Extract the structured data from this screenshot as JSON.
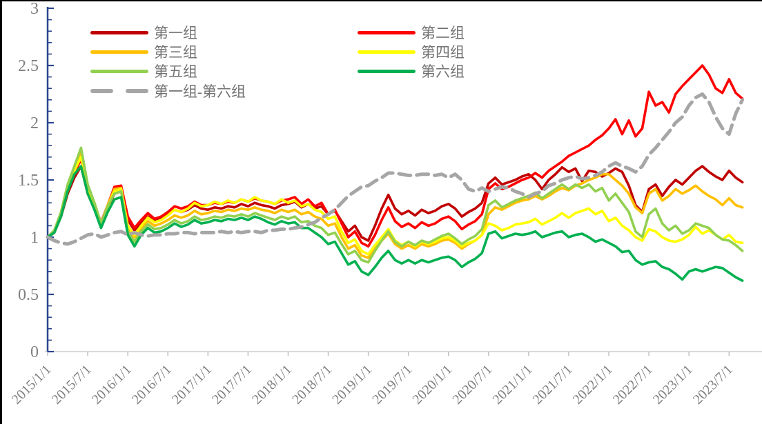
{
  "chart_data": {
    "type": "line",
    "title": "",
    "x_unit": "month",
    "x_range": "2015/1 - 2023/9",
    "x_tick_labels": [
      "2015/1/1",
      "2015/7/1",
      "2016/1/1",
      "2016/7/1",
      "2017/1/1",
      "2017/7/1",
      "2018/1/1",
      "2018/7/1",
      "2019/1/1",
      "2019/7/1",
      "2020/1/1",
      "2020/7/1",
      "2021/1/1",
      "2021/7/1",
      "2022/1/1",
      "2022/7/1",
      "2023/1/1",
      "2023/7/1"
    ],
    "y_tick_labels": [
      "0",
      "0.5",
      "1",
      "1.5",
      "2",
      "2.5",
      "3"
    ],
    "ylim": [
      0,
      3
    ],
    "y_minor_tick_interval": 0.1,
    "grid": "off",
    "legend_position": "top-left",
    "colors": {
      "y_axis": "#2B4590",
      "x_axis_line": "#D9D9D9",
      "x_tick": "#BFBFBF",
      "tick_label": "#7F7F7F",
      "legend_text": "#737373"
    },
    "series": [
      {
        "id": "group-1",
        "name": "第一组",
        "color": "#C00000",
        "style": "solid",
        "values": [
          1.0,
          1.04,
          1.18,
          1.38,
          1.52,
          1.62,
          1.38,
          1.25,
          1.12,
          1.25,
          1.38,
          1.4,
          1.15,
          1.06,
          1.12,
          1.18,
          1.14,
          1.16,
          1.2,
          1.24,
          1.22,
          1.24,
          1.28,
          1.25,
          1.24,
          1.26,
          1.25,
          1.27,
          1.26,
          1.29,
          1.27,
          1.3,
          1.28,
          1.27,
          1.25,
          1.28,
          1.29,
          1.31,
          1.26,
          1.29,
          1.25,
          1.27,
          1.2,
          1.23,
          1.14,
          1.05,
          1.1,
          1.0,
          0.97,
          1.1,
          1.25,
          1.37,
          1.25,
          1.2,
          1.23,
          1.19,
          1.24,
          1.21,
          1.23,
          1.27,
          1.29,
          1.25,
          1.18,
          1.22,
          1.25,
          1.3,
          1.47,
          1.52,
          1.46,
          1.48,
          1.5,
          1.53,
          1.55,
          1.5,
          1.42,
          1.5,
          1.55,
          1.61,
          1.57,
          1.6,
          1.49,
          1.58,
          1.57,
          1.53,
          1.56,
          1.6,
          1.57,
          1.45,
          1.28,
          1.22,
          1.42,
          1.46,
          1.36,
          1.44,
          1.5,
          1.46,
          1.52,
          1.58,
          1.62,
          1.57,
          1.53,
          1.5,
          1.58,
          1.52,
          1.48
        ]
      },
      {
        "id": "group-2",
        "name": "第二组",
        "color": "#FF0000",
        "style": "solid",
        "values": [
          1.0,
          1.05,
          1.2,
          1.42,
          1.56,
          1.68,
          1.42,
          1.28,
          1.13,
          1.28,
          1.44,
          1.45,
          1.18,
          1.08,
          1.15,
          1.21,
          1.16,
          1.18,
          1.22,
          1.27,
          1.25,
          1.27,
          1.31,
          1.28,
          1.28,
          1.3,
          1.29,
          1.31,
          1.3,
          1.33,
          1.31,
          1.34,
          1.32,
          1.31,
          1.29,
          1.32,
          1.33,
          1.35,
          1.29,
          1.33,
          1.27,
          1.3,
          1.2,
          1.24,
          1.12,
          1.0,
          1.05,
          0.95,
          0.92,
          1.02,
          1.15,
          1.26,
          1.14,
          1.09,
          1.12,
          1.08,
          1.13,
          1.1,
          1.12,
          1.16,
          1.18,
          1.14,
          1.07,
          1.11,
          1.14,
          1.2,
          1.42,
          1.47,
          1.42,
          1.44,
          1.47,
          1.5,
          1.52,
          1.56,
          1.52,
          1.58,
          1.62,
          1.66,
          1.71,
          1.74,
          1.77,
          1.8,
          1.85,
          1.89,
          1.95,
          2.03,
          1.9,
          2.02,
          1.88,
          1.95,
          2.27,
          2.15,
          2.18,
          2.09,
          2.25,
          2.32,
          2.38,
          2.44,
          2.5,
          2.42,
          2.3,
          2.26,
          2.38,
          2.26,
          2.21
        ]
      },
      {
        "id": "group-3",
        "name": "第三组",
        "color": "#FFC000",
        "style": "solid",
        "values": [
          1.0,
          1.05,
          1.21,
          1.44,
          1.6,
          1.73,
          1.44,
          1.3,
          1.12,
          1.28,
          1.42,
          1.43,
          1.08,
          1.0,
          1.08,
          1.14,
          1.1,
          1.12,
          1.15,
          1.19,
          1.17,
          1.19,
          1.23,
          1.2,
          1.21,
          1.23,
          1.22,
          1.24,
          1.23,
          1.25,
          1.24,
          1.26,
          1.24,
          1.23,
          1.21,
          1.24,
          1.22,
          1.24,
          1.2,
          1.22,
          1.18,
          1.16,
          1.1,
          1.12,
          1.0,
          0.9,
          0.93,
          0.84,
          0.82,
          0.9,
          0.97,
          1.03,
          0.94,
          0.9,
          0.93,
          0.9,
          0.94,
          0.92,
          0.94,
          0.97,
          0.98,
          0.95,
          0.9,
          0.94,
          0.97,
          1.02,
          1.2,
          1.26,
          1.24,
          1.27,
          1.3,
          1.32,
          1.33,
          1.36,
          1.33,
          1.36,
          1.4,
          1.43,
          1.41,
          1.45,
          1.47,
          1.5,
          1.52,
          1.55,
          1.55,
          1.5,
          1.45,
          1.38,
          1.26,
          1.21,
          1.38,
          1.42,
          1.32,
          1.36,
          1.42,
          1.38,
          1.41,
          1.45,
          1.4,
          1.36,
          1.33,
          1.28,
          1.34,
          1.28,
          1.26
        ]
      },
      {
        "id": "group-4",
        "name": "第四组",
        "color": "#FFFF00",
        "style": "solid",
        "values": [
          1.0,
          1.05,
          1.2,
          1.43,
          1.58,
          1.7,
          1.42,
          1.28,
          1.1,
          1.26,
          1.4,
          1.42,
          1.1,
          1.02,
          1.1,
          1.17,
          1.13,
          1.15,
          1.19,
          1.24,
          1.22,
          1.25,
          1.3,
          1.27,
          1.28,
          1.31,
          1.29,
          1.32,
          1.3,
          1.33,
          1.31,
          1.35,
          1.32,
          1.31,
          1.29,
          1.33,
          1.3,
          1.32,
          1.27,
          1.29,
          1.24,
          1.22,
          1.16,
          1.18,
          1.05,
          0.95,
          0.98,
          0.88,
          0.85,
          0.93,
          1.0,
          1.07,
          0.97,
          0.93,
          0.96,
          0.92,
          0.96,
          0.94,
          0.96,
          0.99,
          1.0,
          0.97,
          0.92,
          0.95,
          0.97,
          1.02,
          1.12,
          1.1,
          1.06,
          1.08,
          1.11,
          1.12,
          1.13,
          1.16,
          1.11,
          1.14,
          1.17,
          1.21,
          1.17,
          1.21,
          1.23,
          1.25,
          1.2,
          1.23,
          1.14,
          1.17,
          1.1,
          1.06,
          1.0,
          0.97,
          1.07,
          1.05,
          1.0,
          0.97,
          0.96,
          0.98,
          1.02,
          1.09,
          1.03,
          1.06,
          1.02,
          0.98,
          1.02,
          0.96,
          0.95
        ]
      },
      {
        "id": "group-5",
        "name": "第五组",
        "color": "#92D050",
        "style": "solid",
        "values": [
          1.0,
          1.06,
          1.22,
          1.46,
          1.62,
          1.78,
          1.46,
          1.3,
          1.12,
          1.27,
          1.38,
          1.4,
          1.05,
          0.96,
          1.05,
          1.11,
          1.07,
          1.08,
          1.11,
          1.15,
          1.12,
          1.14,
          1.18,
          1.15,
          1.16,
          1.18,
          1.17,
          1.19,
          1.18,
          1.2,
          1.18,
          1.21,
          1.19,
          1.17,
          1.15,
          1.18,
          1.16,
          1.18,
          1.13,
          1.14,
          1.1,
          1.08,
          1.02,
          1.04,
          0.94,
          0.85,
          0.88,
          0.8,
          0.78,
          0.88,
          0.97,
          1.05,
          0.96,
          0.92,
          0.96,
          0.93,
          0.97,
          0.95,
          0.98,
          1.01,
          1.03,
          0.99,
          0.94,
          0.98,
          1.01,
          1.07,
          1.28,
          1.32,
          1.26,
          1.29,
          1.32,
          1.34,
          1.36,
          1.39,
          1.34,
          1.38,
          1.42,
          1.46,
          1.42,
          1.46,
          1.43,
          1.46,
          1.4,
          1.43,
          1.32,
          1.38,
          1.3,
          1.22,
          1.05,
          1.0,
          1.2,
          1.25,
          1.12,
          1.06,
          1.1,
          1.03,
          1.06,
          1.12,
          1.1,
          1.08,
          1.02,
          0.98,
          0.97,
          0.93,
          0.88
        ]
      },
      {
        "id": "group-6",
        "name": "第六组",
        "color": "#00B050",
        "style": "solid",
        "values": [
          1.0,
          1.04,
          1.18,
          1.4,
          1.55,
          1.62,
          1.38,
          1.24,
          1.08,
          1.22,
          1.33,
          1.35,
          1.02,
          0.92,
          1.02,
          1.08,
          1.04,
          1.05,
          1.08,
          1.12,
          1.09,
          1.11,
          1.15,
          1.12,
          1.13,
          1.15,
          1.14,
          1.16,
          1.15,
          1.17,
          1.15,
          1.18,
          1.16,
          1.13,
          1.11,
          1.14,
          1.12,
          1.13,
          1.08,
          1.08,
          1.04,
          1.0,
          0.94,
          0.96,
          0.86,
          0.76,
          0.79,
          0.7,
          0.67,
          0.74,
          0.82,
          0.88,
          0.8,
          0.77,
          0.8,
          0.77,
          0.8,
          0.78,
          0.8,
          0.82,
          0.83,
          0.8,
          0.74,
          0.78,
          0.81,
          0.86,
          1.03,
          1.05,
          0.99,
          1.01,
          1.03,
          1.02,
          1.03,
          1.05,
          1.0,
          1.02,
          1.04,
          1.05,
          1.0,
          1.02,
          1.03,
          1.0,
          0.96,
          0.98,
          0.95,
          0.92,
          0.87,
          0.88,
          0.8,
          0.76,
          0.78,
          0.79,
          0.74,
          0.72,
          0.68,
          0.63,
          0.7,
          0.72,
          0.7,
          0.72,
          0.74,
          0.73,
          0.69,
          0.65,
          0.62
        ]
      },
      {
        "id": "group-1-minus-group-6",
        "name": "第一组-第六组",
        "color": "#A6A6A6",
        "style": "dashed",
        "values": [
          1.0,
          0.97,
          0.95,
          0.94,
          0.96,
          0.99,
          1.02,
          1.03,
          1.0,
          1.02,
          1.04,
          1.05,
          1.02,
          1.04,
          1.02,
          1.01,
          1.02,
          1.02,
          1.03,
          1.03,
          1.04,
          1.04,
          1.03,
          1.04,
          1.04,
          1.04,
          1.05,
          1.04,
          1.05,
          1.04,
          1.05,
          1.05,
          1.04,
          1.06,
          1.06,
          1.07,
          1.07,
          1.08,
          1.09,
          1.11,
          1.13,
          1.17,
          1.2,
          1.24,
          1.3,
          1.36,
          1.4,
          1.44,
          1.45,
          1.49,
          1.52,
          1.56,
          1.56,
          1.55,
          1.54,
          1.54,
          1.55,
          1.55,
          1.54,
          1.55,
          1.52,
          1.55,
          1.5,
          1.42,
          1.4,
          1.43,
          1.4,
          1.42,
          1.44,
          1.43,
          1.4,
          1.38,
          1.35,
          1.38,
          1.4,
          1.45,
          1.47,
          1.5,
          1.52,
          1.53,
          1.51,
          1.52,
          1.54,
          1.57,
          1.62,
          1.65,
          1.62,
          1.6,
          1.57,
          1.62,
          1.72,
          1.78,
          1.85,
          1.92,
          2.0,
          2.05,
          2.15,
          2.22,
          2.25,
          2.18,
          2.05,
          1.95,
          1.9,
          2.08,
          2.2
        ]
      }
    ]
  }
}
